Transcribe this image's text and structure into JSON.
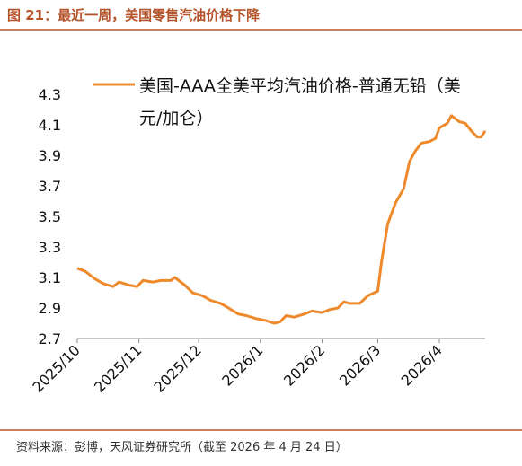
{
  "title": "图 21：最近一周，美国零售汽油价格下降",
  "source": "资料来源：彭博，天风证券研究所（截至 2026 年 4 月 24 日）",
  "chart_data": {
    "type": "line",
    "series": [
      {
        "name": "美国-AAA全美平均汽油价格-普通无铅（美元/加仑）",
        "color": "#ee8a2c",
        "x": [
          0,
          4,
          9,
          13,
          18,
          21,
          26,
          30,
          33,
          38,
          42,
          47,
          49,
          54,
          58,
          63,
          67,
          72,
          76,
          81,
          85,
          90,
          94,
          99,
          102,
          105,
          109,
          114,
          118,
          123,
          127,
          131,
          134,
          137,
          142,
          146,
          151,
          153,
          156,
          160,
          164,
          167,
          170,
          173,
          177,
          180,
          182,
          186,
          188,
          192,
          195,
          198,
          201,
          203,
          205
        ],
        "values": [
          3.16,
          3.14,
          3.09,
          3.06,
          3.04,
          3.07,
          3.05,
          3.04,
          3.08,
          3.07,
          3.08,
          3.08,
          3.1,
          3.05,
          3.0,
          2.98,
          2.95,
          2.93,
          2.9,
          2.86,
          2.85,
          2.83,
          2.82,
          2.8,
          2.81,
          2.85,
          2.84,
          2.86,
          2.88,
          2.87,
          2.89,
          2.9,
          2.94,
          2.93,
          2.93,
          2.98,
          3.01,
          3.21,
          3.45,
          3.59,
          3.68,
          3.86,
          3.93,
          3.98,
          3.99,
          4.01,
          4.08,
          4.11,
          4.16,
          4.12,
          4.11,
          4.06,
          4.02,
          4.02,
          4.06
        ]
      }
    ],
    "xlim": [
      0,
      205
    ],
    "xticks": [
      {
        "value": 0,
        "label": "2025/10"
      },
      {
        "value": 31,
        "label": "2025/11"
      },
      {
        "value": 61,
        "label": "2025/12"
      },
      {
        "value": 92,
        "label": "2026/1"
      },
      {
        "value": 123,
        "label": "2026/2"
      },
      {
        "value": 151,
        "label": "2026/3"
      },
      {
        "value": 182,
        "label": "2026/4"
      }
    ],
    "ylim": [
      2.7,
      4.3
    ],
    "yticks": [
      2.7,
      2.9,
      3.1,
      3.3,
      3.5,
      3.7,
      3.9,
      4.1,
      4.3
    ],
    "grid": false
  }
}
